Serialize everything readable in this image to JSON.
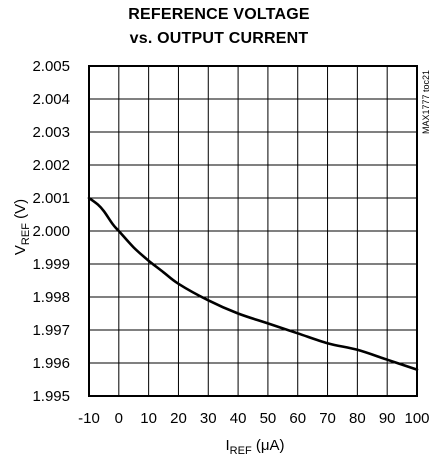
{
  "chart_data": {
    "type": "line",
    "title_line1": "REFERENCE VOLTAGE",
    "title_line2": "vs. OUTPUT CURRENT",
    "xlabel": {
      "main": "I",
      "sub": "REF",
      "unit": " (μA)"
    },
    "ylabel": {
      "main": "V",
      "sub": "REF",
      "unit": " (V)"
    },
    "xlim": [
      -10,
      100
    ],
    "ylim": [
      1.995,
      2.005
    ],
    "x_ticks": [
      -10,
      0,
      10,
      20,
      30,
      40,
      50,
      60,
      70,
      80,
      90,
      100
    ],
    "x_tick_labels": [
      "-10",
      "0",
      "10",
      "20",
      "30",
      "40",
      "50",
      "60",
      "70",
      "80",
      "90",
      "100"
    ],
    "y_ticks": [
      1.995,
      1.996,
      1.997,
      1.998,
      1.999,
      2.0,
      2.001,
      2.002,
      2.003,
      2.004,
      2.005
    ],
    "y_tick_labels": [
      "1.995",
      "1.996",
      "1.997",
      "1.998",
      "1.999",
      "2.000",
      "2.001",
      "2.002",
      "2.003",
      "2.004",
      "2.005"
    ],
    "grid": true,
    "side_note": "MAX1777 toc21",
    "series": [
      {
        "x": [
          -10,
          -7,
          -5,
          -2,
          0,
          5,
          10,
          15,
          20,
          30,
          40,
          50,
          60,
          70,
          80,
          90,
          100
        ],
        "y": [
          2.001,
          2.0008,
          2.0006,
          2.0002,
          2.0,
          1.9995,
          1.9991,
          1.99875,
          1.9984,
          1.9979,
          1.9975,
          1.9972,
          1.9969,
          1.9966,
          1.9964,
          1.9961,
          1.9958
        ]
      }
    ]
  }
}
